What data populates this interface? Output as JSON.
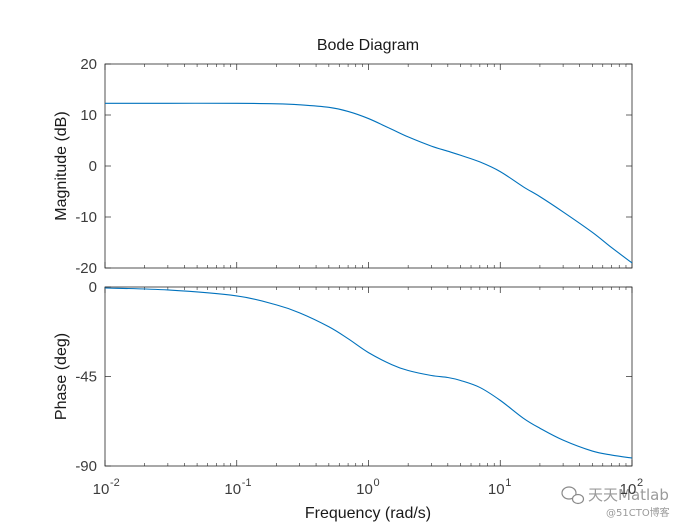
{
  "chart_data": {
    "type": "line",
    "title": "Bode Diagram",
    "xlabel": "Frequency  (rad/s)",
    "x_scale": "log",
    "xlim": [
      0.01,
      100
    ],
    "x_ticks": [
      {
        "base": "10",
        "exp": "-2"
      },
      {
        "base": "10",
        "exp": "-1"
      },
      {
        "base": "10",
        "exp": "0"
      },
      {
        "base": "10",
        "exp": "1"
      },
      {
        "base": "10",
        "exp": "2"
      }
    ],
    "line_color": "#0072BD",
    "subplots": [
      {
        "name": "magnitude",
        "ylabel": "Magnitude (dB)",
        "ylim": [
          -20,
          20
        ],
        "y_ticks": [
          "20",
          "10",
          "0",
          "-10",
          "-20"
        ],
        "series": [
          {
            "x": [
              0.01,
              0.03,
              0.1,
              0.2,
              0.3,
              0.5,
              0.7,
              1,
              1.5,
              2,
              3,
              4,
              5,
              7,
              10,
              15,
              20,
              30,
              50,
              70,
              100
            ],
            "y": [
              12.3,
              12.3,
              12.3,
              12.2,
              12.0,
              11.5,
              10.7,
              9.3,
              7.2,
              5.7,
              3.9,
              2.9,
              2.1,
              0.8,
              -1.1,
              -4.1,
              -6.0,
              -9.0,
              -13.0,
              -16.0,
              -19.0
            ]
          }
        ]
      },
      {
        "name": "phase",
        "ylabel": "Phase (deg)",
        "ylim": [
          -90,
          0
        ],
        "y_ticks": [
          "0",
          "-45",
          "-90"
        ],
        "series": [
          {
            "x": [
              0.01,
              0.03,
              0.1,
              0.2,
              0.3,
              0.5,
              0.7,
              1,
              1.5,
              2,
              3,
              4,
              5,
              7,
              10,
              15,
              20,
              30,
              50,
              70,
              100
            ],
            "y": [
              -0.5,
              -1.5,
              -4.5,
              -9.0,
              -13.0,
              -20.0,
              -26.0,
              -33.0,
              -39.0,
              -42.0,
              -44.5,
              -45.5,
              -47.0,
              -50.5,
              -57.0,
              -66.0,
              -71.0,
              -77.0,
              -82.5,
              -84.5,
              -86.0
            ]
          }
        ]
      }
    ]
  },
  "watermark": {
    "icon": "wechat-icon",
    "line1": "天天Matlab",
    "line2": "@51CTO博客"
  }
}
